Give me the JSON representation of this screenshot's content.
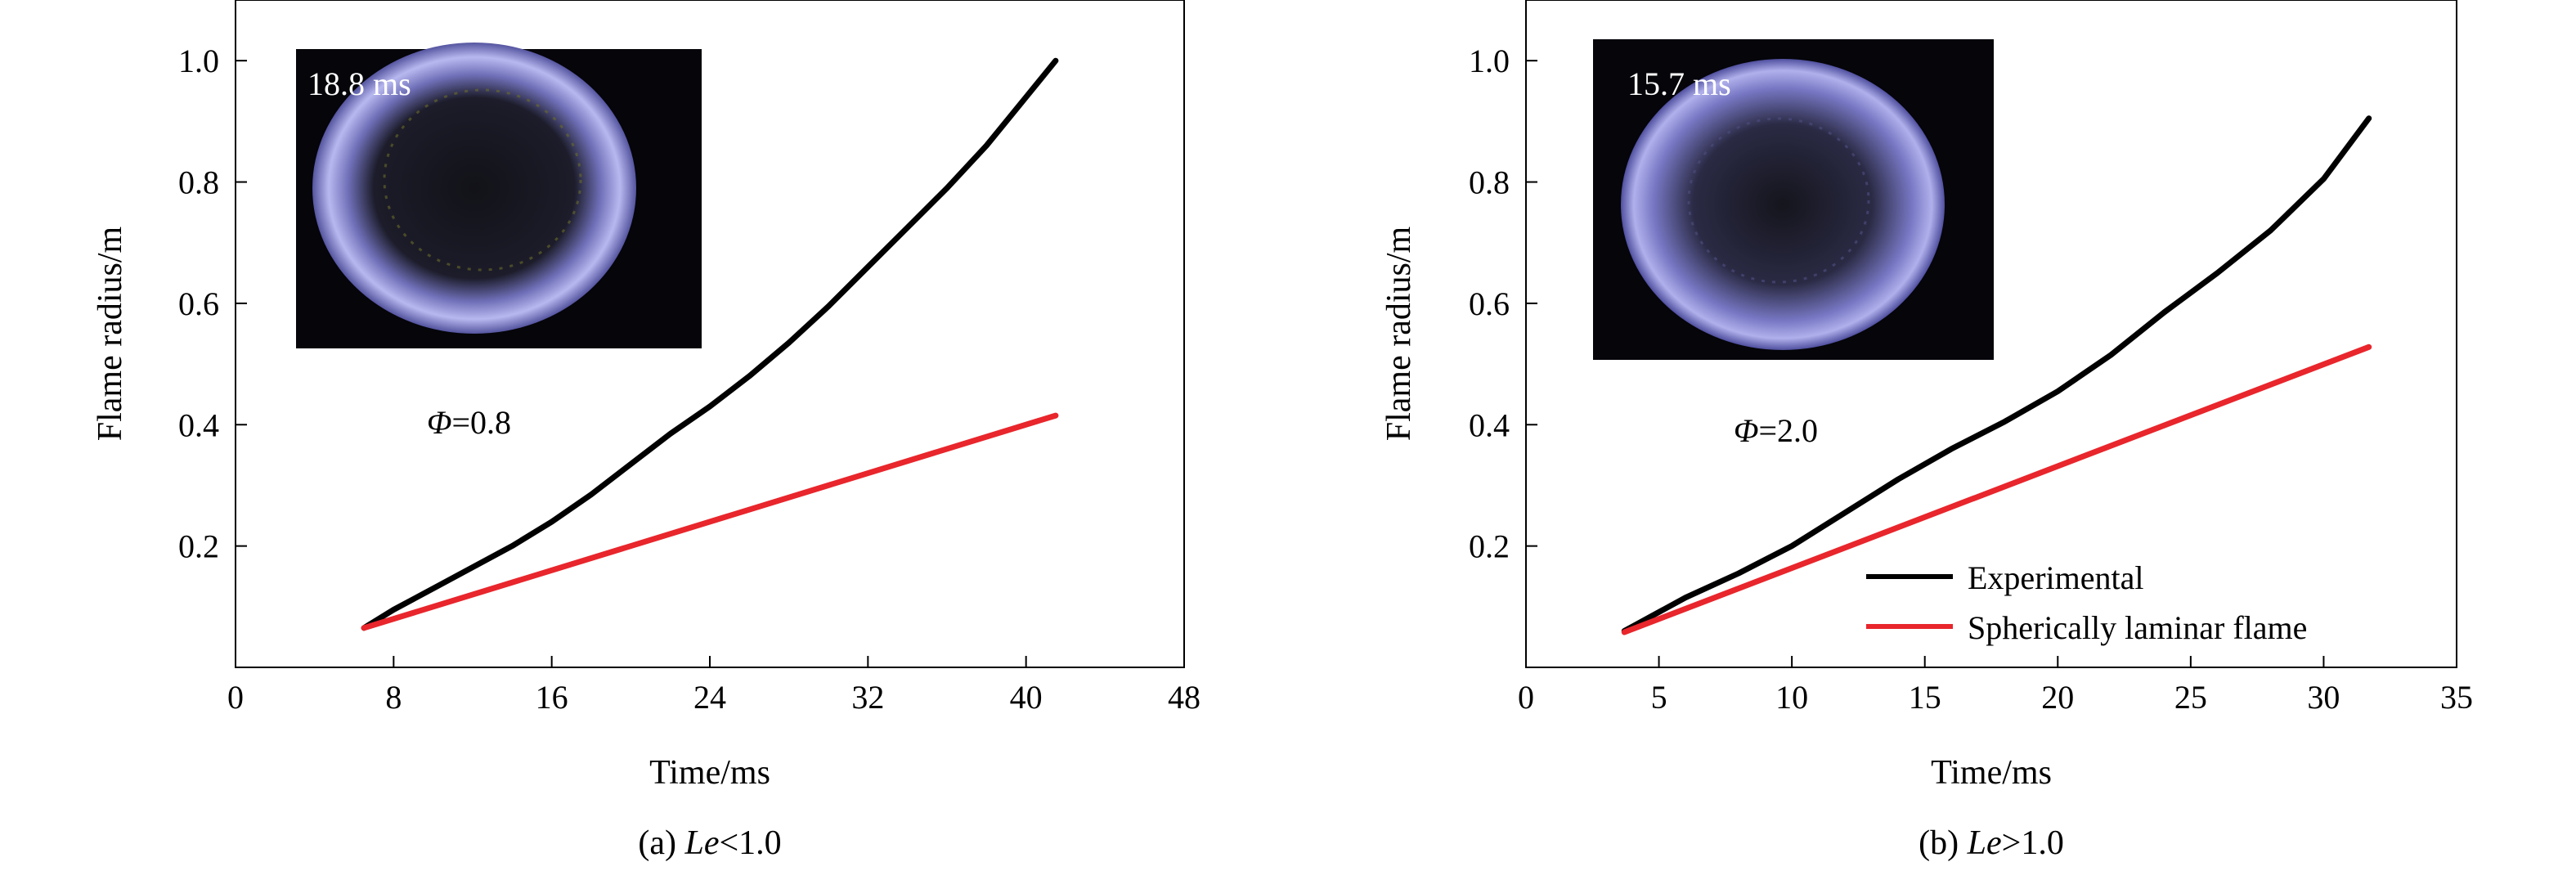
{
  "chart_data": [
    {
      "type": "line",
      "panel_id": "a",
      "caption_prefix": "(a) ",
      "caption_var": "Le",
      "caption_suffix": "<1.0",
      "xlabel": "Time/ms",
      "ylabel": "Flame radius/m",
      "xlim": [
        0,
        48
      ],
      "ylim": [
        0,
        1.1
      ],
      "xticks": [
        0,
        8,
        16,
        24,
        32,
        40,
        48
      ],
      "yticks": [
        0.2,
        0.4,
        0.6,
        0.8,
        1.0
      ],
      "xtick_labels": [
        "0",
        "8",
        "16",
        "24",
        "32",
        "40",
        "48"
      ],
      "ytick_labels": [
        "0.2",
        "0.4",
        "0.6",
        "0.8",
        "1.0"
      ],
      "inset_time": "18.8 ms",
      "phi_symbol": "Φ",
      "phi_value": "=0.8",
      "series": [
        {
          "x": [
            6.5,
            8,
            10,
            12,
            14,
            16,
            18,
            20,
            22,
            24,
            26,
            28,
            30,
            32,
            34,
            36,
            38,
            40,
            41.5
          ],
          "y": [
            0.065,
            0.095,
            0.13,
            0.165,
            0.2,
            0.24,
            0.285,
            0.335,
            0.385,
            0.43,
            0.48,
            0.535,
            0.595,
            0.66,
            0.725,
            0.79,
            0.86,
            0.94,
            1.0
          ]
        },
        {
          "x": [
            6.5,
            41.5
          ],
          "y": [
            0.065,
            0.415
          ]
        }
      ],
      "colors": [
        "#000000",
        "#e8262c"
      ]
    },
    {
      "type": "line",
      "panel_id": "b",
      "caption_prefix": "(b) ",
      "caption_var": "Le",
      "caption_suffix": ">1.0",
      "xlabel": "Time/ms",
      "ylabel": "Flame radius/m",
      "xlim": [
        0,
        35
      ],
      "ylim": [
        0,
        1.1
      ],
      "xticks": [
        0,
        5,
        10,
        15,
        20,
        25,
        30,
        35
      ],
      "yticks": [
        0.2,
        0.4,
        0.6,
        0.8,
        1.0
      ],
      "xtick_labels": [
        "0",
        "5",
        "10",
        "15",
        "20",
        "25",
        "30",
        "35"
      ],
      "ytick_labels": [
        "0.2",
        "0.4",
        "0.6",
        "0.8",
        "1.0"
      ],
      "inset_time": "15.7 ms",
      "phi_symbol": "Φ",
      "phi_value": "=2.0",
      "legend": [
        "Experimental",
        "Spherically laminar flame"
      ],
      "legend_position": "lower-right",
      "series": [
        {
          "name": "Experimental",
          "x": [
            3.7,
            6,
            8,
            10,
            12,
            14,
            16,
            18,
            20,
            22,
            24,
            26,
            28,
            30,
            31.7
          ],
          "y": [
            0.06,
            0.115,
            0.155,
            0.2,
            0.255,
            0.31,
            0.36,
            0.405,
            0.455,
            0.515,
            0.585,
            0.65,
            0.72,
            0.805,
            0.905
          ]
        },
        {
          "name": "Spherically laminar flame",
          "x": [
            3.7,
            31.7
          ],
          "y": [
            0.058,
            0.528
          ]
        }
      ],
      "colors": [
        "#000000",
        "#e8262c"
      ]
    }
  ]
}
